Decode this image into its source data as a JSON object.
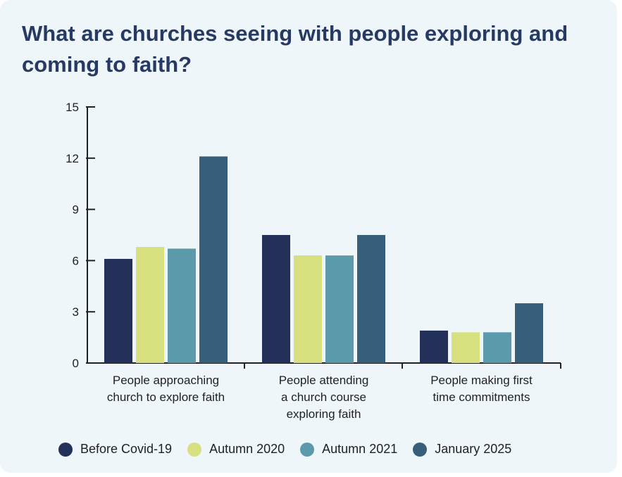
{
  "chart_data": {
    "type": "bar",
    "title": "What are churches seeing with people exploring and coming to faith?",
    "xlabel": "",
    "ylabel": "",
    "ylim": [
      0,
      15
    ],
    "yticks": [
      "0",
      "3",
      "6",
      "9",
      "12",
      "15"
    ],
    "categories": [
      [
        "People approaching",
        "church to explore faith"
      ],
      [
        "People attending",
        "a church course",
        "exploring faith"
      ],
      [
        "People making first",
        "time commitments"
      ]
    ],
    "series": [
      {
        "name": "Before Covid-19",
        "color": "#23305a",
        "values": [
          6.1,
          7.5,
          1.9
        ]
      },
      {
        "name": "Autumn 2020",
        "color": "#d6e07f",
        "values": [
          6.8,
          6.3,
          1.8
        ]
      },
      {
        "name": "Autumn 2021",
        "color": "#5b9aaa",
        "values": [
          6.7,
          6.3,
          1.8
        ]
      },
      {
        "name": "January 2025",
        "color": "#375f7a",
        "values": [
          12.1,
          7.5,
          3.5
        ]
      }
    ],
    "legend": "bottom"
  }
}
